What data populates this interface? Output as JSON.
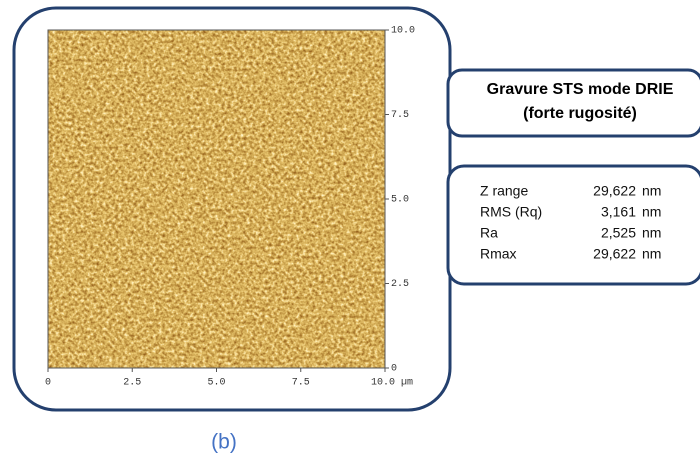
{
  "image": {
    "x_ticks": [
      "0",
      "2.5",
      "5.0",
      "7.5",
      "10.0 µm"
    ],
    "y_ticks": [
      "10.0",
      "7.5",
      "5.0",
      "2.5",
      "0"
    ]
  },
  "header": {
    "title": "Gravure STS mode DRIE",
    "subtitle": "(forte rugosité)"
  },
  "table": {
    "rows": [
      [
        "Z range",
        "29,622",
        "nm"
      ],
      [
        "RMS  (Rq)",
        "3,161",
        "nm"
      ],
      [
        "Ra",
        "2,525",
        "nm"
      ],
      [
        "Rmax",
        "29,622",
        "nm"
      ]
    ]
  },
  "caption": "(b)"
}
